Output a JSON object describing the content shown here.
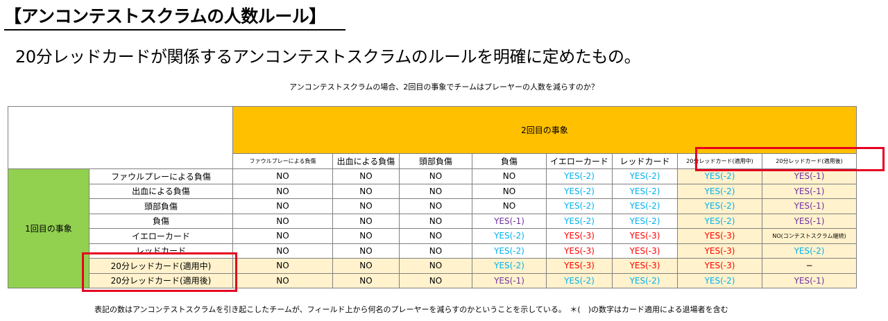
{
  "title": "【アンコンテストスクラムの人数ルール】",
  "subtitle": "20分レッドカードが関係するアンコンテストスクラムのルールを明確に定めたもの。",
  "caption": "アンコンテストスクラムの場合、2回目の事象でチームはプレーヤーの人数を減らすのか？",
  "table": {
    "second_event_label": "2回目の事象",
    "first_event_label": "1回目の事象",
    "columns": [
      "ファウルプレーによる負傷",
      "出血による負傷",
      "頭部負傷",
      "負傷",
      "イエローカード",
      "レッドカード",
      "20分レッドカード(適用中)",
      "20分レッドカード(適用後)"
    ],
    "rows": [
      {
        "label": "ファウルプレーによる負傷",
        "cells": [
          "NO",
          "NO",
          "NO",
          "NO",
          "YES(-2)",
          "YES(-2)",
          "YES(-2)",
          "YES(-1)"
        ]
      },
      {
        "label": "出血による負傷",
        "cells": [
          "NO",
          "NO",
          "NO",
          "NO",
          "YES(-2)",
          "YES(-2)",
          "YES(-2)",
          "YES(-1)"
        ]
      },
      {
        "label": "頭部負傷",
        "cells": [
          "NO",
          "NO",
          "NO",
          "NO",
          "YES(-2)",
          "YES(-2)",
          "YES(-2)",
          "YES(-1)"
        ]
      },
      {
        "label": "負傷",
        "cells": [
          "NO",
          "NO",
          "NO",
          "YES(-1)",
          "YES(-2)",
          "YES(-2)",
          "YES(-2)",
          "YES(-1)"
        ]
      },
      {
        "label": "イエローカード",
        "cells": [
          "NO",
          "NO",
          "NO",
          "YES(-2)",
          "YES(-3)",
          "YES(-3)",
          "YES(-3)",
          "NO(コンテストスクラム継続)"
        ]
      },
      {
        "label": "レッドカード",
        "cells": [
          "NO",
          "NO",
          "NO",
          "YES(-2)",
          "YES(-3)",
          "YES(-3)",
          "YES(-3)",
          "YES(-2)"
        ]
      },
      {
        "label": "20分レッドカード(適用中)",
        "cells": [
          "NO",
          "NO",
          "NO",
          "YES(-2)",
          "YES(-3)",
          "YES(-3)",
          "YES(-3)",
          "−"
        ]
      },
      {
        "label": "20分レッドカード(適用後)",
        "cells": [
          "NO",
          "NO",
          "NO",
          "YES(-1)",
          "YES(-2)",
          "YES(-2)",
          "YES(-2)",
          "YES(-1)"
        ]
      }
    ]
  },
  "footnote": "表記の数はアンコンテストスクラムを引き起こしたチームが、フィールド上から何名のプレーヤーを減らすのかということを示している。　＊(　)の数字はカード適用による退場者を含む",
  "colors": {
    "header_orange": "#ffc000",
    "first_event_green": "#92d050",
    "highlight_yellow": "#fff2cc",
    "highlight_box_red": "#e6001f",
    "yes_minus1": "#7030a0",
    "yes_minus2": "#00b0f0",
    "yes_minus3": "#ff0000"
  }
}
